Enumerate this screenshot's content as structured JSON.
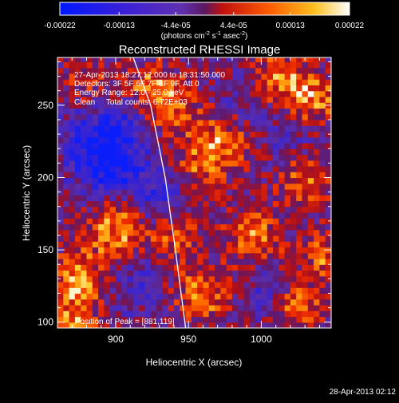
{
  "chart_data": {
    "type": "heatmap",
    "title": "Reconstructed RHESSI Image",
    "xlabel": "Heliocentric X (arcsec)",
    "ylabel": "Heliocentric Y (arcsec)",
    "x_ticks": [
      900,
      950,
      1000
    ],
    "y_ticks": [
      100,
      150,
      200,
      250
    ],
    "xlim": [
      860,
      1048
    ],
    "ylim": [
      96,
      283
    ],
    "colorbar": {
      "ticks": [
        "-0.00022",
        "-0.00013",
        "-4.4e-05",
        "4.4e-05",
        "0.00013",
        "0.00022"
      ],
      "tick_values": [
        -0.00022,
        -0.00013,
        -4.4e-05,
        4.4e-05,
        0.00013,
        0.00022
      ],
      "range": [
        -0.00022,
        0.00022
      ],
      "unit_base": "(photons cm",
      "unit_exp1": "-2",
      "unit_mid": " s",
      "unit_exp2": "-1",
      "unit_mid2": " asec",
      "unit_exp3": "-2",
      "unit_end": ")"
    },
    "annotations": [
      "27-Apr-2013 18:27:12.000 to 18:31:50.000",
      "Detectors: 3F 5F 6F 7F 8F 9F, Att 0",
      "Energy Range: 12.0 - 25.0 keV",
      "Clean     Total counts: 6.72E+03"
    ],
    "peak_label": "Position of Peak = [881,119]",
    "peak": [
      881,
      119
    ],
    "limb_curve": [
      [
        912,
        283
      ],
      [
        924,
        250
      ],
      [
        934,
        200
      ],
      [
        941,
        150
      ],
      [
        948,
        96
      ]
    ],
    "features": [
      {
        "x": 925,
        "y": 260,
        "v": 0.9
      },
      {
        "x": 882,
        "y": 265,
        "v": 0.5
      },
      {
        "x": 1010,
        "y": 270,
        "v": 0.7
      },
      {
        "x": 1035,
        "y": 255,
        "v": 0.85
      },
      {
        "x": 975,
        "y": 225,
        "v": 0.75
      },
      {
        "x": 955,
        "y": 205,
        "v": 0.6
      },
      {
        "x": 1030,
        "y": 200,
        "v": 0.7
      },
      {
        "x": 995,
        "y": 160,
        "v": 0.8
      },
      {
        "x": 960,
        "y": 120,
        "v": 0.85
      },
      {
        "x": 1025,
        "y": 110,
        "v": 0.8
      },
      {
        "x": 900,
        "y": 165,
        "v": 0.9
      },
      {
        "x": 875,
        "y": 135,
        "v": 0.75
      },
      {
        "x": 940,
        "y": 160,
        "v": 0.65
      },
      {
        "x": 1045,
        "y": 145,
        "v": 0.7
      },
      {
        "x": 895,
        "y": 210,
        "v": -1.0
      },
      {
        "x": 905,
        "y": 240,
        "v": -0.6
      },
      {
        "x": 930,
        "y": 190,
        "v": -0.7
      },
      {
        "x": 880,
        "y": 230,
        "v": -0.5
      },
      {
        "x": 915,
        "y": 130,
        "v": -0.3
      },
      {
        "x": 1005,
        "y": 120,
        "v": -0.35
      },
      {
        "x": 1020,
        "y": 230,
        "v": -0.3
      },
      {
        "x": 870,
        "y": 105,
        "v": 0.75
      },
      {
        "x": 985,
        "y": 250,
        "v": -0.25
      },
      {
        "x": 945,
        "y": 245,
        "v": 0.5
      }
    ]
  },
  "footer": {
    "timestamp": "28-Apr-2013 02:12"
  }
}
